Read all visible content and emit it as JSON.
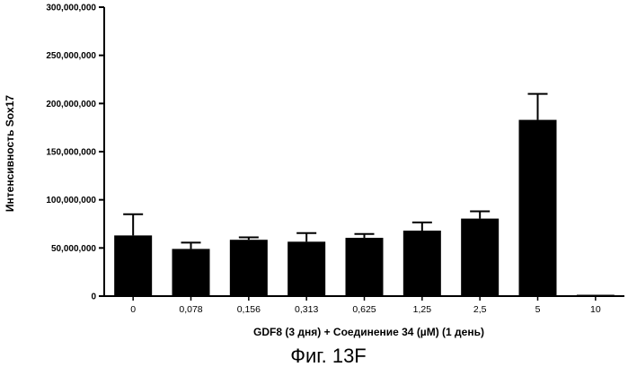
{
  "chart_data": {
    "type": "bar",
    "categories": [
      "0",
      "0,078",
      "0,156",
      "0,313",
      "0,625",
      "1,25",
      "2,5",
      "5",
      "10"
    ],
    "series": [
      {
        "values": [
          63000000,
          49000000,
          58500000,
          56500000,
          60500000,
          68000000,
          80500000,
          183000000,
          800000
        ],
        "errors": [
          22000000,
          6500000,
          2500000,
          9000000,
          4000000,
          8500000,
          7500000,
          27000000,
          0
        ]
      }
    ],
    "ylim": [
      0,
      300000000
    ],
    "yticks": [
      0,
      50000000,
      100000000,
      150000000,
      200000000,
      250000000,
      300000000
    ],
    "ytick_labels": [
      "0",
      "50,000,000",
      "100,000,000",
      "150,000,000",
      "200,000,000",
      "250,000,000",
      "300,000,000"
    ],
    "xlabel": "GDF8 (3 дня) + Соединение 34 (µM) (1 день)",
    "ylabel": "Интенсивность Sox17",
    "caption": "Фиг. 13F",
    "bar_color": "#000000",
    "grid": false
  }
}
